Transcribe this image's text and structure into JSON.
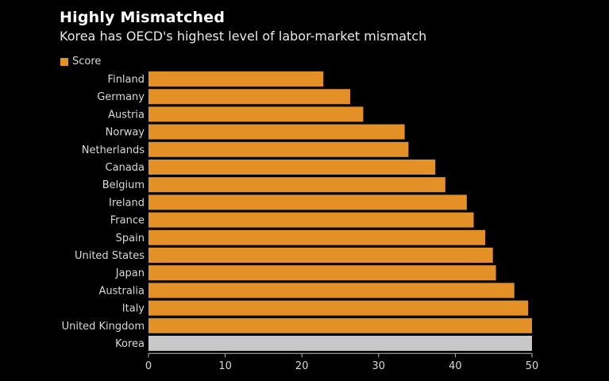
{
  "title": "Highly Mismatched",
  "subtitle": "Korea has OECD's highest level of labor-market mismatch",
  "colors": {
    "bar": "#E39127",
    "highlight": "#C8C8C8",
    "background": "#000000"
  },
  "chart_data": {
    "type": "bar",
    "orientation": "horizontal",
    "categories": [
      "Finland",
      "Germany",
      "Austria",
      "Norway",
      "Netherlands",
      "Canada",
      "Belgium",
      "Ireland",
      "France",
      "Spain",
      "United States",
      "Japan",
      "Australia",
      "Italy",
      "United Kingdom",
      "Korea"
    ],
    "series": [
      {
        "name": "Score",
        "values": [
          22.8,
          26.3,
          28.0,
          33.4,
          33.9,
          37.4,
          38.7,
          41.5,
          42.4,
          43.9,
          44.9,
          45.3,
          47.7,
          49.5,
          50.0,
          50.0
        ]
      }
    ],
    "highlight_category": "Korea",
    "xlim": [
      0,
      50
    ],
    "xticks": [
      0,
      10,
      20,
      30,
      40,
      50
    ],
    "legend": "top-left",
    "grid": false
  }
}
